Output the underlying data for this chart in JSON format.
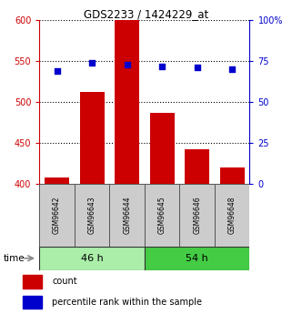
{
  "title": "GDS2233 / 1424229_at",
  "categories": [
    "GSM96642",
    "GSM96643",
    "GSM96644",
    "GSM96645",
    "GSM96646",
    "GSM96648"
  ],
  "bar_values": [
    408,
    512,
    600,
    487,
    442,
    420
  ],
  "percentile_values": [
    69,
    74,
    73,
    72,
    71,
    70
  ],
  "bar_color": "#cc0000",
  "dot_color": "#0000cc",
  "ylim_left": [
    400,
    600
  ],
  "ylim_right": [
    0,
    100
  ],
  "yticks_left": [
    400,
    450,
    500,
    550,
    600
  ],
  "yticks_right": [
    0,
    25,
    50,
    75,
    100
  ],
  "ytick_labels_right": [
    "0",
    "25",
    "50",
    "75",
    "100%"
  ],
  "groups": [
    {
      "label": "46 h",
      "indices": [
        0,
        1,
        2
      ],
      "color": "#aaeeaa"
    },
    {
      "label": "54 h",
      "indices": [
        3,
        4,
        5
      ],
      "color": "#44cc44"
    }
  ],
  "background_color": "#ffffff",
  "plot_bg_color": "#ffffff",
  "label_color_left": "#cc0000",
  "label_color_right": "#0000cc",
  "legend_count_label": "count",
  "legend_pct_label": "percentile rank within the sample",
  "bar_width": 0.7
}
